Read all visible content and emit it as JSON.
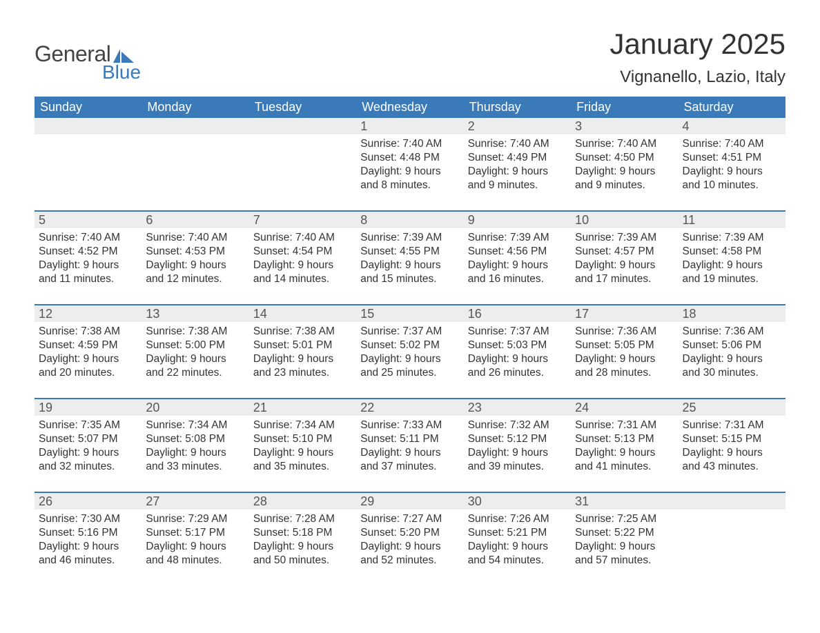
{
  "logo": {
    "text_general": "General",
    "text_blue": "Blue",
    "flag_color": "#3b7ab8"
  },
  "title": "January 2025",
  "location": "Vignanello, Lazio, Italy",
  "colors": {
    "header_bg": "#3b7ab8",
    "header_text": "#ffffff",
    "daynum_bg": "#ededed",
    "daynum_text": "#555555",
    "body_text": "#333333",
    "row_border": "#3b7ab8",
    "page_bg": "#ffffff"
  },
  "typography": {
    "title_fontsize": 42,
    "location_fontsize": 24,
    "weekday_fontsize": 18,
    "daynum_fontsize": 18,
    "content_fontsize": 15.5
  },
  "weekdays": [
    "Sunday",
    "Monday",
    "Tuesday",
    "Wednesday",
    "Thursday",
    "Friday",
    "Saturday"
  ],
  "weeks": [
    [
      {
        "n": "",
        "sunrise": "",
        "sunset": "",
        "daylight": ""
      },
      {
        "n": "",
        "sunrise": "",
        "sunset": "",
        "daylight": ""
      },
      {
        "n": "",
        "sunrise": "",
        "sunset": "",
        "daylight": ""
      },
      {
        "n": "1",
        "sunrise": "Sunrise: 7:40 AM",
        "sunset": "Sunset: 4:48 PM",
        "daylight": "Daylight: 9 hours and 8 minutes."
      },
      {
        "n": "2",
        "sunrise": "Sunrise: 7:40 AM",
        "sunset": "Sunset: 4:49 PM",
        "daylight": "Daylight: 9 hours and 9 minutes."
      },
      {
        "n": "3",
        "sunrise": "Sunrise: 7:40 AM",
        "sunset": "Sunset: 4:50 PM",
        "daylight": "Daylight: 9 hours and 9 minutes."
      },
      {
        "n": "4",
        "sunrise": "Sunrise: 7:40 AM",
        "sunset": "Sunset: 4:51 PM",
        "daylight": "Daylight: 9 hours and 10 minutes."
      }
    ],
    [
      {
        "n": "5",
        "sunrise": "Sunrise: 7:40 AM",
        "sunset": "Sunset: 4:52 PM",
        "daylight": "Daylight: 9 hours and 11 minutes."
      },
      {
        "n": "6",
        "sunrise": "Sunrise: 7:40 AM",
        "sunset": "Sunset: 4:53 PM",
        "daylight": "Daylight: 9 hours and 12 minutes."
      },
      {
        "n": "7",
        "sunrise": "Sunrise: 7:40 AM",
        "sunset": "Sunset: 4:54 PM",
        "daylight": "Daylight: 9 hours and 14 minutes."
      },
      {
        "n": "8",
        "sunrise": "Sunrise: 7:39 AM",
        "sunset": "Sunset: 4:55 PM",
        "daylight": "Daylight: 9 hours and 15 minutes."
      },
      {
        "n": "9",
        "sunrise": "Sunrise: 7:39 AM",
        "sunset": "Sunset: 4:56 PM",
        "daylight": "Daylight: 9 hours and 16 minutes."
      },
      {
        "n": "10",
        "sunrise": "Sunrise: 7:39 AM",
        "sunset": "Sunset: 4:57 PM",
        "daylight": "Daylight: 9 hours and 17 minutes."
      },
      {
        "n": "11",
        "sunrise": "Sunrise: 7:39 AM",
        "sunset": "Sunset: 4:58 PM",
        "daylight": "Daylight: 9 hours and 19 minutes."
      }
    ],
    [
      {
        "n": "12",
        "sunrise": "Sunrise: 7:38 AM",
        "sunset": "Sunset: 4:59 PM",
        "daylight": "Daylight: 9 hours and 20 minutes."
      },
      {
        "n": "13",
        "sunrise": "Sunrise: 7:38 AM",
        "sunset": "Sunset: 5:00 PM",
        "daylight": "Daylight: 9 hours and 22 minutes."
      },
      {
        "n": "14",
        "sunrise": "Sunrise: 7:38 AM",
        "sunset": "Sunset: 5:01 PM",
        "daylight": "Daylight: 9 hours and 23 minutes."
      },
      {
        "n": "15",
        "sunrise": "Sunrise: 7:37 AM",
        "sunset": "Sunset: 5:02 PM",
        "daylight": "Daylight: 9 hours and 25 minutes."
      },
      {
        "n": "16",
        "sunrise": "Sunrise: 7:37 AM",
        "sunset": "Sunset: 5:03 PM",
        "daylight": "Daylight: 9 hours and 26 minutes."
      },
      {
        "n": "17",
        "sunrise": "Sunrise: 7:36 AM",
        "sunset": "Sunset: 5:05 PM",
        "daylight": "Daylight: 9 hours and 28 minutes."
      },
      {
        "n": "18",
        "sunrise": "Sunrise: 7:36 AM",
        "sunset": "Sunset: 5:06 PM",
        "daylight": "Daylight: 9 hours and 30 minutes."
      }
    ],
    [
      {
        "n": "19",
        "sunrise": "Sunrise: 7:35 AM",
        "sunset": "Sunset: 5:07 PM",
        "daylight": "Daylight: 9 hours and 32 minutes."
      },
      {
        "n": "20",
        "sunrise": "Sunrise: 7:34 AM",
        "sunset": "Sunset: 5:08 PM",
        "daylight": "Daylight: 9 hours and 33 minutes."
      },
      {
        "n": "21",
        "sunrise": "Sunrise: 7:34 AM",
        "sunset": "Sunset: 5:10 PM",
        "daylight": "Daylight: 9 hours and 35 minutes."
      },
      {
        "n": "22",
        "sunrise": "Sunrise: 7:33 AM",
        "sunset": "Sunset: 5:11 PM",
        "daylight": "Daylight: 9 hours and 37 minutes."
      },
      {
        "n": "23",
        "sunrise": "Sunrise: 7:32 AM",
        "sunset": "Sunset: 5:12 PM",
        "daylight": "Daylight: 9 hours and 39 minutes."
      },
      {
        "n": "24",
        "sunrise": "Sunrise: 7:31 AM",
        "sunset": "Sunset: 5:13 PM",
        "daylight": "Daylight: 9 hours and 41 minutes."
      },
      {
        "n": "25",
        "sunrise": "Sunrise: 7:31 AM",
        "sunset": "Sunset: 5:15 PM",
        "daylight": "Daylight: 9 hours and 43 minutes."
      }
    ],
    [
      {
        "n": "26",
        "sunrise": "Sunrise: 7:30 AM",
        "sunset": "Sunset: 5:16 PM",
        "daylight": "Daylight: 9 hours and 46 minutes."
      },
      {
        "n": "27",
        "sunrise": "Sunrise: 7:29 AM",
        "sunset": "Sunset: 5:17 PM",
        "daylight": "Daylight: 9 hours and 48 minutes."
      },
      {
        "n": "28",
        "sunrise": "Sunrise: 7:28 AM",
        "sunset": "Sunset: 5:18 PM",
        "daylight": "Daylight: 9 hours and 50 minutes."
      },
      {
        "n": "29",
        "sunrise": "Sunrise: 7:27 AM",
        "sunset": "Sunset: 5:20 PM",
        "daylight": "Daylight: 9 hours and 52 minutes."
      },
      {
        "n": "30",
        "sunrise": "Sunrise: 7:26 AM",
        "sunset": "Sunset: 5:21 PM",
        "daylight": "Daylight: 9 hours and 54 minutes."
      },
      {
        "n": "31",
        "sunrise": "Sunrise: 7:25 AM",
        "sunset": "Sunset: 5:22 PM",
        "daylight": "Daylight: 9 hours and 57 minutes."
      },
      {
        "n": "",
        "sunrise": "",
        "sunset": "",
        "daylight": ""
      }
    ]
  ]
}
